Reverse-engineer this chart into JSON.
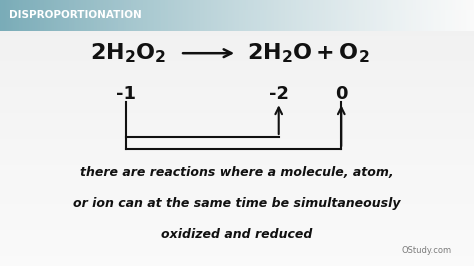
{
  "title": "DISPROPORTIONATION",
  "title_color": "#ffffff",
  "title_bg_left": "#7aacb8",
  "title_bg_right": "#ddeef2",
  "bg_color_top": "#d8d8d8",
  "bg_color_bottom": "#f0f0f0",
  "ox_left": "-1",
  "ox_mid": "-2",
  "ox_right": "0",
  "body_text_line1": "there are reactions where a molecule, atom,",
  "body_text_line2": "or ion can at the same time be simultaneously",
  "body_text_line3": "oxidized and reduced",
  "watermark": "OStudy.com",
  "arrow_color": "#111111",
  "text_color": "#111111",
  "figw": 4.74,
  "figh": 2.66,
  "dpi": 100
}
